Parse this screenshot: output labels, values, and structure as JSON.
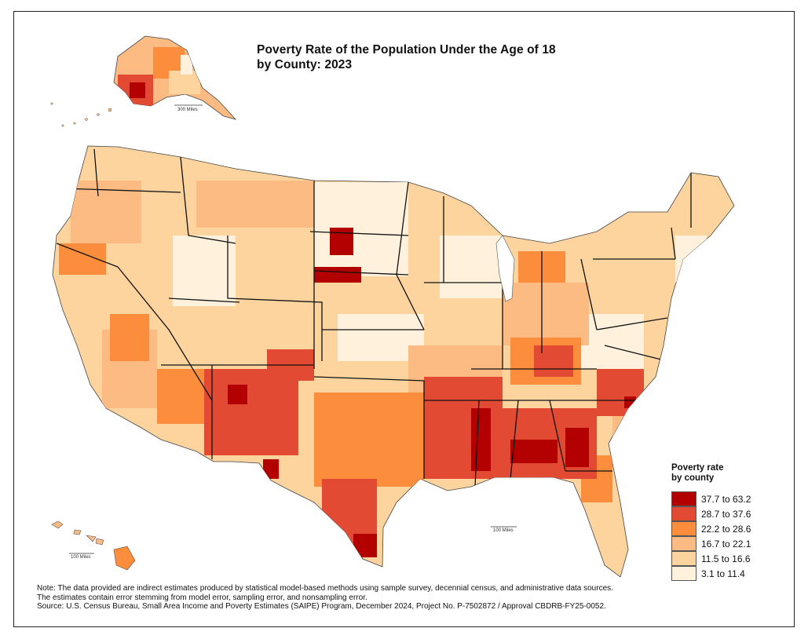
{
  "title": {
    "line1": "Poverty Rate of the Population Under the Age of 18",
    "line2": "by County: 2023"
  },
  "scale_bars": {
    "alaska": "300 Miles",
    "conus": "100 Miles",
    "hawaii": "100 Miles"
  },
  "legend": {
    "title_line1": "Poverty rate",
    "title_line2": "by county",
    "classes": [
      {
        "label": "37.7 to 63.2",
        "color": "#b30000"
      },
      {
        "label": "28.7 to 37.6",
        "color": "#e34a33"
      },
      {
        "label": "22.2 to 28.6",
        "color": "#fc8d3c"
      },
      {
        "label": "16.7 to 22.1",
        "color": "#fdbb84"
      },
      {
        "label": "11.5 to 16.6",
        "color": "#fdd49e"
      },
      {
        "label": "3.1 to 11.4",
        "color": "#fff1dc"
      }
    ]
  },
  "notes": {
    "line1": "Note: The data provided are indirect estimates produced by statistical model-based methods using sample survey, decennial census, and administrative data sources.",
    "line2": "The estimates contain error stemming from model error, sampling error, and nonsampling error.",
    "line3": "Source: U.S. Census Bureau, Small Area Income and Poverty Estimates (SAIPE) Program, December 2024, Project No. P-7502872 / Approval CBDRB-FY25-0052."
  }
}
